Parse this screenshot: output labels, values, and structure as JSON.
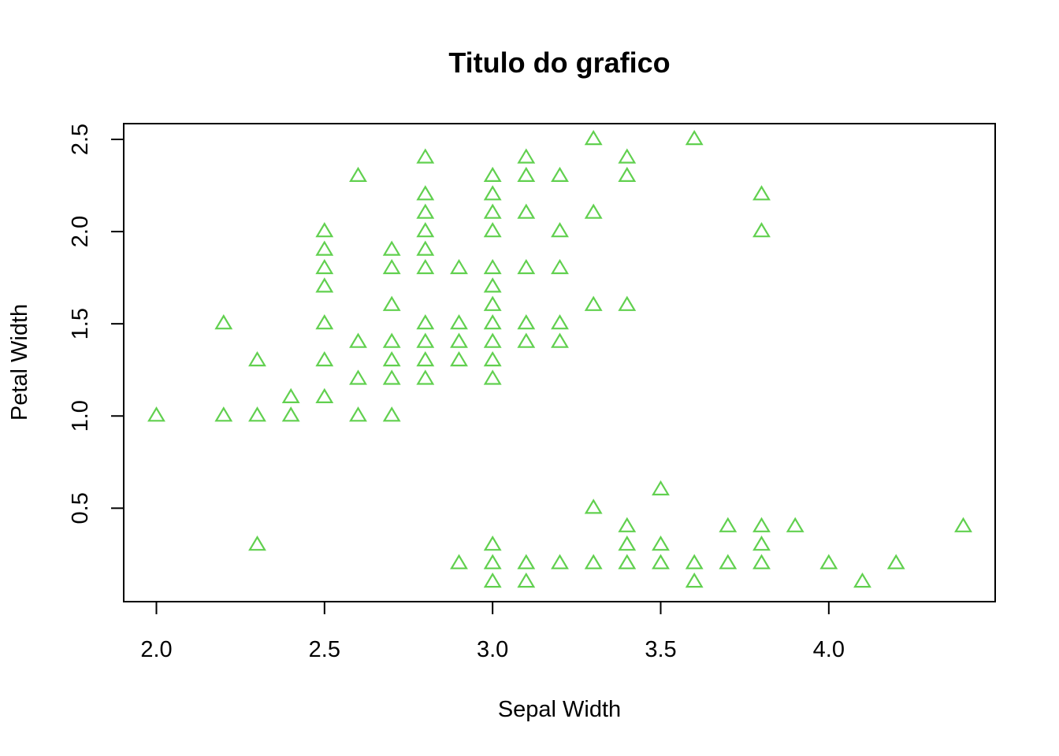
{
  "chart_data": {
    "type": "scatter",
    "title": "Titulo do grafico",
    "xlabel": "Sepal Width",
    "ylabel": "Petal Width",
    "xlim": [
      2.0,
      4.4
    ],
    "ylim": [
      0.1,
      2.5
    ],
    "x_ticks": [
      "2.0",
      "2.5",
      "3.0",
      "3.5",
      "4.0"
    ],
    "y_ticks": [
      "0.5",
      "1.0",
      "1.5",
      "2.0",
      "2.5"
    ],
    "grid": false,
    "marker": "open-triangle",
    "color": "#61d04f",
    "points": [
      [
        2.0,
        1.0
      ],
      [
        2.2,
        1.5
      ],
      [
        2.2,
        1.0
      ],
      [
        2.3,
        1.3
      ],
      [
        2.3,
        1.0
      ],
      [
        2.3,
        0.3
      ],
      [
        2.4,
        1.1
      ],
      [
        2.4,
        1.0
      ],
      [
        2.5,
        2.0
      ],
      [
        2.5,
        1.9
      ],
      [
        2.5,
        1.8
      ],
      [
        2.5,
        1.7
      ],
      [
        2.5,
        1.5
      ],
      [
        2.5,
        1.3
      ],
      [
        2.5,
        1.1
      ],
      [
        2.6,
        2.3
      ],
      [
        2.6,
        1.4
      ],
      [
        2.6,
        1.2
      ],
      [
        2.6,
        1.0
      ],
      [
        2.7,
        1.9
      ],
      [
        2.7,
        1.8
      ],
      [
        2.7,
        1.6
      ],
      [
        2.7,
        1.4
      ],
      [
        2.7,
        1.3
      ],
      [
        2.7,
        1.2
      ],
      [
        2.7,
        1.0
      ],
      [
        2.8,
        2.4
      ],
      [
        2.8,
        2.2
      ],
      [
        2.8,
        2.1
      ],
      [
        2.8,
        2.0
      ],
      [
        2.8,
        1.9
      ],
      [
        2.8,
        1.8
      ],
      [
        2.8,
        1.5
      ],
      [
        2.8,
        1.4
      ],
      [
        2.8,
        1.3
      ],
      [
        2.8,
        1.2
      ],
      [
        2.9,
        1.8
      ],
      [
        2.9,
        1.5
      ],
      [
        2.9,
        1.4
      ],
      [
        2.9,
        1.3
      ],
      [
        2.9,
        0.2
      ],
      [
        3.0,
        2.3
      ],
      [
        3.0,
        2.2
      ],
      [
        3.0,
        2.1
      ],
      [
        3.0,
        2.0
      ],
      [
        3.0,
        1.8
      ],
      [
        3.0,
        1.7
      ],
      [
        3.0,
        1.6
      ],
      [
        3.0,
        1.5
      ],
      [
        3.0,
        1.4
      ],
      [
        3.0,
        1.3
      ],
      [
        3.0,
        1.2
      ],
      [
        3.0,
        0.3
      ],
      [
        3.0,
        0.2
      ],
      [
        3.0,
        0.1
      ],
      [
        3.1,
        2.4
      ],
      [
        3.1,
        2.3
      ],
      [
        3.1,
        2.1
      ],
      [
        3.1,
        1.8
      ],
      [
        3.1,
        1.5
      ],
      [
        3.1,
        1.4
      ],
      [
        3.1,
        0.2
      ],
      [
        3.1,
        0.1
      ],
      [
        3.2,
        2.3
      ],
      [
        3.2,
        2.0
      ],
      [
        3.2,
        1.8
      ],
      [
        3.2,
        1.5
      ],
      [
        3.2,
        1.4
      ],
      [
        3.2,
        0.2
      ],
      [
        3.3,
        2.5
      ],
      [
        3.3,
        2.1
      ],
      [
        3.3,
        1.6
      ],
      [
        3.3,
        0.5
      ],
      [
        3.3,
        0.2
      ],
      [
        3.4,
        2.4
      ],
      [
        3.4,
        2.3
      ],
      [
        3.4,
        1.6
      ],
      [
        3.4,
        0.4
      ],
      [
        3.4,
        0.3
      ],
      [
        3.4,
        0.2
      ],
      [
        3.5,
        0.6
      ],
      [
        3.5,
        0.3
      ],
      [
        3.5,
        0.2
      ],
      [
        3.6,
        2.5
      ],
      [
        3.6,
        0.2
      ],
      [
        3.6,
        0.1
      ],
      [
        3.7,
        0.4
      ],
      [
        3.7,
        0.2
      ],
      [
        3.8,
        2.2
      ],
      [
        3.8,
        2.0
      ],
      [
        3.8,
        0.4
      ],
      [
        3.8,
        0.3
      ],
      [
        3.8,
        0.2
      ],
      [
        3.9,
        0.4
      ],
      [
        4.0,
        0.2
      ],
      [
        4.1,
        0.1
      ],
      [
        4.2,
        0.2
      ],
      [
        4.4,
        0.4
      ]
    ]
  }
}
